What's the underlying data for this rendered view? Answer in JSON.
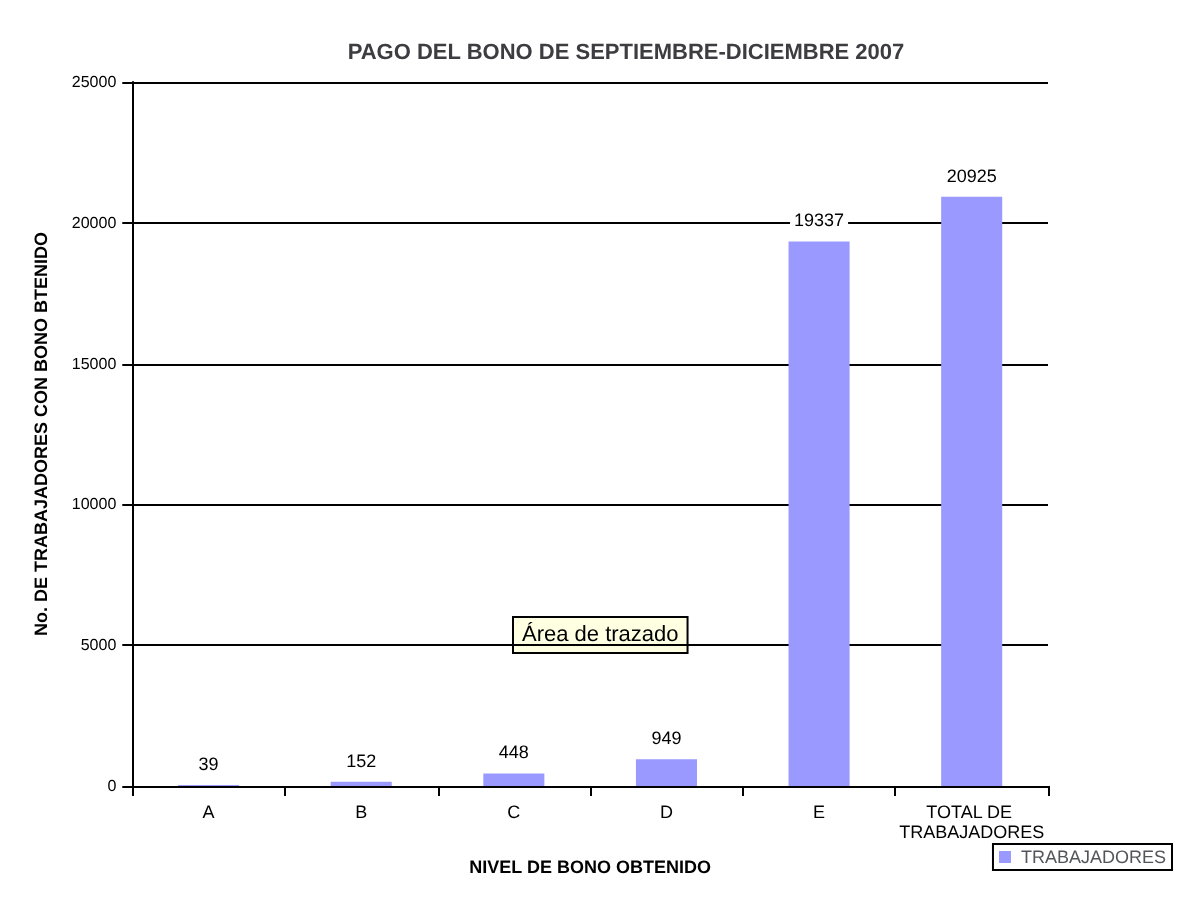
{
  "chart_data": {
    "type": "bar",
    "title": "PAGO DEL BONO DE SEPTIEMBRE-DICIEMBRE 2007",
    "xlabel": "NIVEL DE BONO OBTENIDO",
    "ylabel": "No. DE TRABAJADORES CON BONO BTENIDO",
    "categories": [
      "A",
      "B",
      "C",
      "D",
      "E",
      "TOTAL DE TRABAJADORES"
    ],
    "series": [
      {
        "name": "TRABAJADORES",
        "color": "#9999ff",
        "values": [
          39,
          152,
          448,
          949,
          19337,
          20925
        ]
      }
    ],
    "ylim": [
      0,
      25000
    ],
    "yticks": [
      0,
      5000,
      10000,
      15000,
      20000,
      25000
    ],
    "grid": "y",
    "legend": "bottom right",
    "data_labels": true,
    "annotations": [
      "Área de trazado"
    ]
  }
}
